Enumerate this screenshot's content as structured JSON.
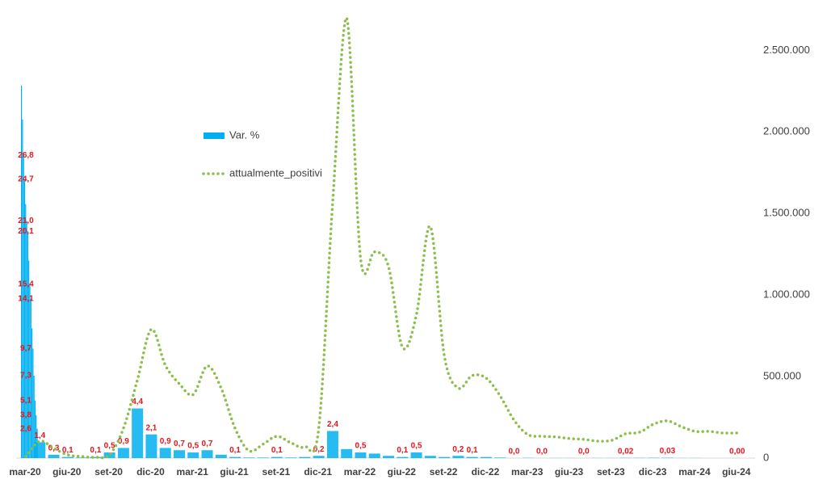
{
  "chart_data": {
    "type": "combo",
    "categories": [
      "mar-20",
      null,
      null,
      "giu-20",
      null,
      null,
      "set-20",
      null,
      null,
      "dic-20",
      null,
      null,
      "mar-21",
      null,
      null,
      "giu-21",
      null,
      null,
      "set-21",
      null,
      null,
      "dic-21",
      null,
      null,
      "mar-22",
      null,
      null,
      "giu-22",
      null,
      null,
      "set-22",
      null,
      null,
      "dic-22",
      null,
      null,
      "mar-23",
      null,
      null,
      "giu-23",
      null,
      null,
      "set-23",
      null,
      null,
      "dic-23",
      null,
      null,
      "mar-24",
      null,
      null,
      "giu-24"
    ],
    "ylim": [
      0,
      39
    ],
    "y2lim": [
      0,
      2700000
    ],
    "y2ticks": [
      0,
      {
        "value": 500000,
        "label": "500.000"
      },
      {
        "value": 1000000,
        "label": "1.000.000"
      },
      {
        "value": 1500000,
        "label": "1.500.000"
      },
      {
        "value": 2000000,
        "label": "2.000.000"
      },
      {
        "value": 2500000,
        "label": "2.500.000"
      }
    ],
    "series": [
      {
        "name": "Var. %",
        "type": "bar",
        "color": "#00b0f0",
        "values": [
          null,
          1.4,
          0.3,
          0.1,
          0.05,
          0.1,
          0.5,
          0.9,
          4.4,
          2.1,
          0.9,
          0.7,
          0.5,
          0.7,
          0.3,
          0.1,
          0.05,
          0.05,
          0.1,
          0.05,
          0.1,
          0.2,
          2.4,
          0.8,
          0.5,
          0.4,
          0.2,
          0.1,
          0.5,
          0.2,
          0.1,
          0.2,
          0.1,
          0.1,
          0.05,
          0.0,
          0.02,
          0.0,
          0.01,
          0.01,
          0.0,
          0.01,
          0.01,
          0.02,
          0.02,
          0.03,
          0.03,
          0.01,
          0.01,
          0.0,
          0.0,
          0
        ],
        "value_labels": [
          null,
          "1,4",
          "0,3",
          "0,1",
          null,
          "0,1",
          "0,5",
          "0,9",
          "4,4",
          "2,1",
          "0,9",
          "0,7",
          "0,5",
          "0,7",
          null,
          "0,1",
          null,
          null,
          "0,1",
          null,
          null,
          "0,2",
          "2,4",
          null,
          "0,5",
          null,
          null,
          "0,1",
          "0,5",
          null,
          null,
          "0,2",
          "0,1",
          null,
          null,
          "0,0",
          null,
          "0,0",
          null,
          null,
          "0,0",
          null,
          null,
          "0,02",
          null,
          null,
          "0,03",
          null,
          null,
          null,
          null,
          "0,00"
        ],
        "first_month": {
          "values": [
            33,
            30,
            26.8,
            24.7,
            22.5,
            21.0,
            20.1,
            17.5,
            15.4,
            14.1,
            11.5,
            9.7,
            7.3,
            5.1,
            3.8,
            2.6
          ],
          "value_labels": [
            null,
            null,
            "26,8",
            "24,7",
            null,
            "21,0",
            "20,1",
            null,
            "15,4",
            "14,1",
            null,
            "9,7",
            "7,3",
            "5,1",
            "3,8",
            "2,6"
          ]
        }
      },
      {
        "name": "attualmente_positivi",
        "type": "line",
        "axis": "y2",
        "color": "#8dbd4b",
        "values": [
          10000,
          104000,
          60000,
          20000,
          10000,
          5000,
          20000,
          183000,
          480000,
          790000,
          570000,
          456000,
          390000,
          565000,
          430000,
          183000,
          45000,
          85000,
          134000,
          94000,
          70000,
          183000,
          1570000,
          2700000,
          1225000,
          1265000,
          1175000,
          680000,
          878000,
          1420000,
          630000,
          430000,
          506000,
          491000,
          382000,
          233000,
          144000,
          134000,
          130000,
          120000,
          115000,
          104000,
          109000,
          149000,
          159000,
          208000,
          228000,
          193000,
          164000,
          164000,
          154000,
          154000
        ]
      }
    ]
  }
}
